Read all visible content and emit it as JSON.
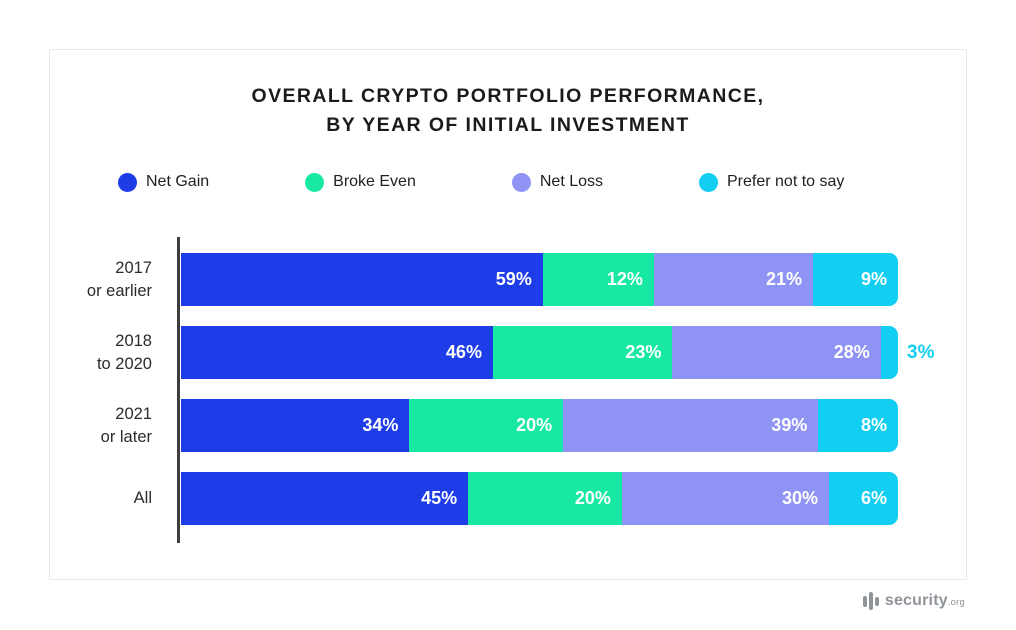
{
  "chart_data": {
    "type": "bar",
    "variant": "horizontal-stacked",
    "title": "OVERALL CRYPTO PORTFOLIO PERFORMANCE,\nBY YEAR OF INITIAL INVESTMENT",
    "legend_position": "top",
    "grid": false,
    "value_suffix": "%",
    "xlim": [
      0,
      100
    ],
    "legend": [
      {
        "label": "Net Gain",
        "color": "#1E3CE8"
      },
      {
        "label": "Broke Even",
        "color": "#17E8A3"
      },
      {
        "label": "Net Loss",
        "color": "#8F93F3"
      },
      {
        "label": "Prefer not to say",
        "color": "#12CFF2"
      }
    ],
    "categories": [
      "2017\nor earlier",
      "2018\nto 2020",
      "2021\nor later",
      "All"
    ],
    "series": [
      {
        "name": "Net Gain",
        "values": [
          59,
          46,
          34,
          45
        ]
      },
      {
        "name": "Broke Even",
        "values": [
          12,
          23,
          20,
          20
        ]
      },
      {
        "name": "Net Loss",
        "values": [
          21,
          28,
          39,
          30
        ]
      },
      {
        "name": "Prefer not to say",
        "values": [
          9,
          3,
          8,
          6
        ]
      }
    ],
    "rows": [
      {
        "category": "2017\nor earlier",
        "values": [
          59,
          12,
          21,
          9
        ],
        "labels": [
          "59%",
          "12%",
          "21%",
          "9%"
        ]
      },
      {
        "category": "2018\nto 2020",
        "values": [
          46,
          23,
          28,
          3
        ],
        "labels": [
          "46%",
          "23%",
          "28%",
          "3%"
        ],
        "outside_label_index": 3
      },
      {
        "category": "2021\nor later",
        "values": [
          34,
          20,
          39,
          8
        ],
        "labels": [
          "34%",
          "20%",
          "39%",
          "8%"
        ]
      },
      {
        "category": "All",
        "values": [
          45,
          20,
          30,
          6
        ],
        "labels": [
          "45%",
          "20%",
          "30%",
          "6%"
        ]
      }
    ]
  },
  "branding": {
    "logo_text": "security",
    "logo_suffix": ".org"
  }
}
